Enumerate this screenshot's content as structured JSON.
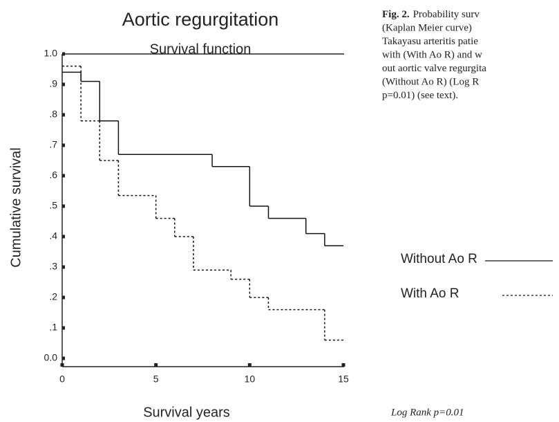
{
  "chart_data": {
    "type": "step",
    "title": "Aortic regurgitation",
    "subtitle": "Survival function",
    "x_label": "Survival years",
    "y_label": "Cumulative survival",
    "xlim": [
      0,
      15
    ],
    "xticks": [
      0,
      5,
      10,
      15
    ],
    "ylim": [
      0,
      1
    ],
    "yticks": [
      {
        "value": 1,
        "label": "1.0"
      },
      {
        "value": 0.9,
        "label": ".9"
      },
      {
        "value": 0.8,
        "label": ".8"
      },
      {
        "value": 0.7,
        "label": ".7"
      },
      {
        "value": 0.6,
        "label": ".6"
      },
      {
        "value": 0.5,
        "label": ".5"
      },
      {
        "value": 0.4,
        "label": ".4"
      },
      {
        "value": 0.3,
        "label": ".3"
      },
      {
        "value": 0.2,
        "label": ".2"
      },
      {
        "value": 0.1,
        "label": ".1"
      },
      {
        "value": 0,
        "label": "0.0"
      }
    ],
    "series": [
      {
        "name": "Without  Ao R",
        "color": "#111111",
        "dash": "solid",
        "x": [
          0,
          1,
          2,
          3,
          8,
          10,
          11,
          13,
          14
        ],
        "values": [
          0.94,
          0.91,
          0.78,
          0.67,
          0.63,
          0.5,
          0.46,
          0.41,
          0.37
        ]
      },
      {
        "name": "With Ao R",
        "color": "#111111",
        "dash": "dashed",
        "x": [
          0,
          1,
          2,
          3,
          5,
          6,
          7,
          9,
          10,
          11,
          14
        ],
        "values": [
          0.96,
          0.78,
          0.65,
          0.535,
          0.46,
          0.4,
          0.29,
          0.26,
          0.2,
          0.16,
          0.06
        ]
      }
    ]
  },
  "caption": {
    "label": "Fig. 2.",
    "lines": [
      "Probability surv",
      "(Kaplan  Meier  curve)",
      "Takayasu  arteritis  patie",
      "with (With Ao R) and w",
      "out aortic valve regurgita",
      "(Without Ao R) (Log R",
      "p=0.01) (see text)."
    ]
  },
  "note": "Log Rank p=0.01"
}
